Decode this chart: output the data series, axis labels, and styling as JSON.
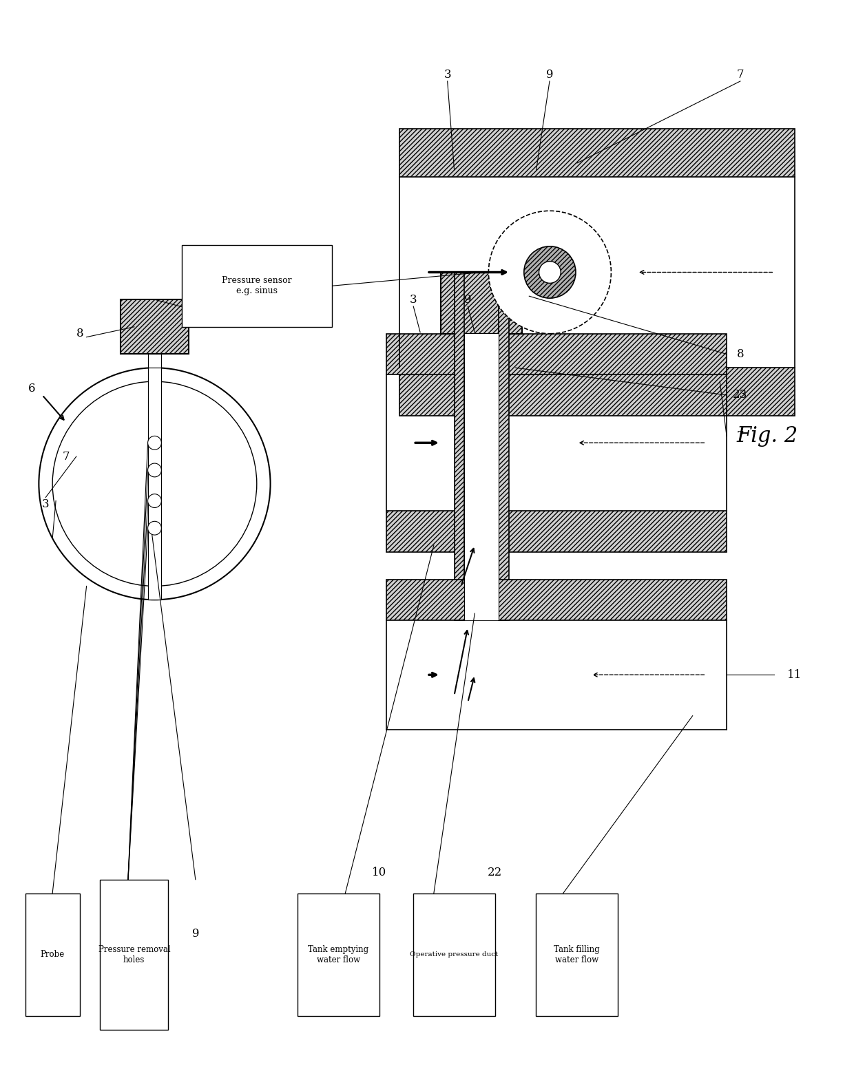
{
  "bg_color": "#ffffff",
  "fig_width": 12.4,
  "fig_height": 15.82,
  "labels": {
    "pressure_sensor": "Pressure sensor\ne.g. sinus",
    "probe": "Probe",
    "pressure_removal_holes": "Pressure removal\nholes",
    "tank_emptying": "Tank emptying\nwater flow",
    "operative_pressure_duct": "Operative pressure duct",
    "tank_filling": "Tank filling\nwater flow"
  },
  "numbers": {
    "3a": "3",
    "3b": "3",
    "6": "6",
    "7a": "7",
    "7b": "7",
    "8a": "8",
    "8b": "8",
    "9a": "9",
    "9b": "9",
    "10": "10",
    "11": "11",
    "22": "22",
    "23": "23"
  },
  "fig_label": "Fig. 2"
}
